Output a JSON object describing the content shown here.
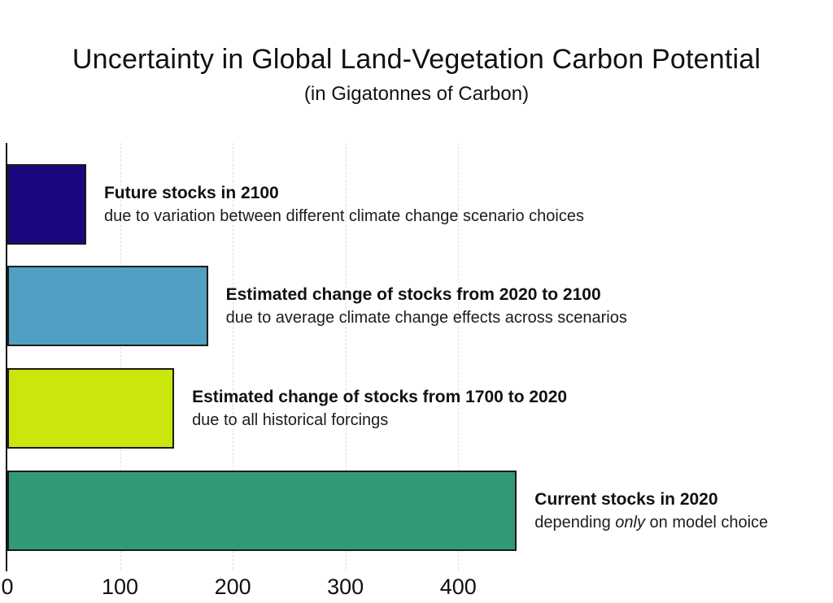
{
  "header": {
    "title": "Uncertainty in Global Land-Vegetation Carbon Potential",
    "subtitle": "(in Gigatonnes of Carbon)"
  },
  "chart_data": {
    "type": "bar",
    "orientation": "horizontal",
    "title": "Uncertainty in Global Land-Vegetation Carbon Potential",
    "subtitle": "(in Gigatonnes of Carbon)",
    "unit": "Gigatonnes of Carbon",
    "x_ticks": [
      0,
      100,
      200,
      300,
      400
    ],
    "xlim": [
      0,
      470
    ],
    "grid": "vertical-dashed",
    "gridline_color": "#dedede",
    "axis_color": "#111111",
    "bar_outline_color": "#1a1a1a",
    "bars": [
      {
        "label": "Future stocks in 2100",
        "sublabel_parts": [
          {
            "text": "due to variation between different climate change scenario choices",
            "italic": false
          }
        ],
        "value": 70,
        "color": "#1a0880"
      },
      {
        "label": "Estimated change of stocks from 2020 to 2100",
        "sublabel_parts": [
          {
            "text": "due to average climate change effects across scenarios",
            "italic": false
          }
        ],
        "value": 178,
        "color": "#4fa0c2"
      },
      {
        "label": "Estimated change of stocks from 1700 to 2020",
        "sublabel_parts": [
          {
            "text": "due to all historical forcings",
            "italic": false
          }
        ],
        "value": 148,
        "color": "#cae60d"
      },
      {
        "label": "Current stocks in 2020",
        "sublabel_parts": [
          {
            "text": "depending ",
            "italic": false
          },
          {
            "text": "only",
            "italic": true
          },
          {
            "text": " on model choice",
            "italic": false
          }
        ],
        "value": 452,
        "color": "#329a78"
      }
    ]
  }
}
